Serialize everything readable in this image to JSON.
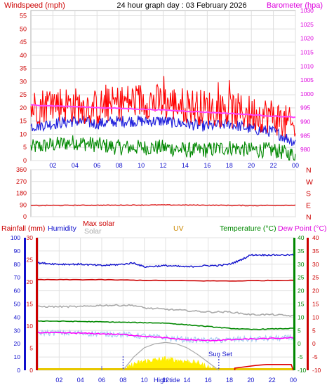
{
  "header": {
    "windspeed_label": "Windspeed (mph)",
    "title": "24 hour graph day : 03 February 2026",
    "barometer_label": "Barometer (hpa)"
  },
  "colors": {
    "wind_gust": "#ff0000",
    "wind_avg": "#2222dd",
    "wind_low": "#008800",
    "barometer": "#ff44ff",
    "direction": "#e03030",
    "humidity": "#1010cc",
    "rain": "#cc0000",
    "solar": "#aaaaaa",
    "max_solar": "#aaaaaa",
    "uv": "#cc8800",
    "temperature": "#008800",
    "dew_point": "#ff00ff",
    "sun_fill": "#ffee00"
  },
  "lower_labels": {
    "rainfall": "Rainfall (mm)",
    "humidity": "Humidity",
    "max_solar": "Max solar",
    "solar": "Solar",
    "uv": "UV",
    "temperature": "Temperature (°C)",
    "dew_point": "Dew Point (°C)",
    "high_tide": "High tide",
    "sun_set": "Sun Set"
  },
  "chart_data": [
    {
      "type": "line",
      "title": "24 hour graph day : 03 February 2026",
      "x_ticks": [
        "02",
        "04",
        "06",
        "08",
        "10",
        "12",
        "14",
        "16",
        "18",
        "20",
        "22",
        "00"
      ],
      "x_hours": [
        2,
        4,
        6,
        8,
        10,
        12,
        14,
        16,
        18,
        20,
        22,
        24
      ],
      "left_axis": {
        "label": "Windspeed (mph)",
        "ylim": [
          0,
          57
        ],
        "ticks": [
          0,
          5,
          10,
          15,
          20,
          25,
          30,
          35,
          40,
          45,
          50,
          55
        ]
      },
      "right_axis": {
        "label": "Barometer (hpa)",
        "ylim": [
          976,
          1030
        ],
        "ticks": [
          980,
          985,
          990,
          995,
          1000,
          1005,
          1010,
          1015,
          1020,
          1025,
          1030
        ]
      },
      "series": [
        {
          "name": "Wind gust",
          "axis": "left",
          "x": [
            0,
            2,
            4,
            6,
            8,
            10,
            12,
            14,
            16,
            18,
            20,
            22,
            24
          ],
          "y": [
            20,
            22,
            21,
            20,
            22,
            23,
            22,
            21,
            20,
            19,
            18,
            17,
            12
          ]
        },
        {
          "name": "Wind average",
          "axis": "left",
          "x": [
            0,
            2,
            4,
            6,
            8,
            10,
            12,
            14,
            16,
            18,
            20,
            22,
            24
          ],
          "y": [
            13,
            14,
            15,
            14,
            15,
            15,
            15,
            14,
            13,
            14,
            12,
            11,
            7
          ]
        },
        {
          "name": "Wind low",
          "axis": "left",
          "x": [
            0,
            2,
            4,
            6,
            8,
            10,
            12,
            14,
            16,
            18,
            20,
            22,
            24
          ],
          "y": [
            5,
            6,
            7,
            6,
            5,
            5,
            5,
            4,
            4,
            5,
            4,
            4,
            2
          ]
        },
        {
          "name": "Barometer",
          "axis": "right",
          "x": [
            0,
            2,
            4,
            6,
            8,
            10,
            12,
            14,
            16,
            18,
            20,
            22,
            24
          ],
          "y": [
            996,
            995.7,
            995.4,
            995.1,
            994.8,
            994.5,
            994.2,
            993.8,
            993.4,
            993.0,
            992.5,
            992.0,
            991.6
          ]
        }
      ]
    },
    {
      "type": "line",
      "title": "",
      "x_ticks": [],
      "left_axis": {
        "ylim": [
          0,
          360
        ],
        "ticks": [
          0,
          90,
          180,
          270,
          360
        ]
      },
      "right_labels": [
        "N",
        "W",
        "S",
        "E",
        "N"
      ],
      "series": [
        {
          "name": "Wind direction",
          "x": [
            0,
            4,
            8,
            12,
            16,
            20,
            24
          ],
          "y": [
            85,
            87,
            88,
            90,
            88,
            85,
            88
          ]
        }
      ]
    },
    {
      "type": "line",
      "title": "",
      "x_ticks": [
        "02",
        "04",
        "06",
        "08",
        "10",
        "12",
        "14",
        "16",
        "18",
        "20",
        "22",
        "00"
      ],
      "x_hours": [
        2,
        4,
        6,
        8,
        10,
        12,
        14,
        16,
        18,
        20,
        22,
        24
      ],
      "axes": {
        "humidity": {
          "label": "Humidity",
          "ylim": [
            0,
            100
          ],
          "ticks": [
            0,
            10,
            20,
            30,
            40,
            50,
            60,
            70,
            80,
            90,
            100
          ]
        },
        "rainfall": {
          "label": "Rainfall (mm)",
          "ylim": [
            0,
            30
          ],
          "ticks": [
            0,
            5,
            10,
            15,
            20,
            25,
            30
          ]
        },
        "temperature": {
          "label": "Temperature (°C)",
          "ylim": [
            -10,
            40
          ],
          "ticks": [
            -10,
            -5,
            0,
            5,
            10,
            15,
            20,
            25,
            30,
            35,
            40
          ]
        },
        "dew_point": {
          "label": "Dew Point (°C)",
          "ylim": [
            -10,
            40
          ],
          "ticks": [
            -10,
            -5,
            0,
            5,
            10,
            15,
            20,
            25,
            30,
            35,
            40
          ]
        }
      },
      "series": [
        {
          "name": "Humidity",
          "axis": "humidity",
          "x": [
            0,
            2,
            4,
            6,
            8,
            9,
            10,
            12,
            14,
            16,
            17,
            18,
            19,
            20,
            22,
            24
          ],
          "y": [
            81,
            80,
            80,
            79,
            80,
            81,
            78,
            79,
            78,
            79,
            79,
            80,
            83,
            87,
            87,
            87
          ]
        },
        {
          "name": "Rainfall",
          "axis": "rainfall",
          "x": [
            0,
            6,
            12,
            18,
            24
          ],
          "y": [
            20.5,
            20.5,
            20.3,
            20.2,
            20.4
          ]
        },
        {
          "name": "Solar (scaled)",
          "axis": "humidity",
          "x": [
            0,
            4,
            6,
            8,
            9,
            10,
            12,
            14,
            16,
            18,
            20,
            22,
            24
          ],
          "y": [
            48,
            48,
            49,
            49,
            49,
            47,
            46,
            45,
            44,
            44,
            42,
            42,
            41
          ]
        },
        {
          "name": "Temperature",
          "axis": "temperature",
          "x": [
            0,
            4,
            8,
            12,
            16,
            18,
            20,
            22,
            24
          ],
          "y": [
            8.6,
            8.4,
            8.1,
            7.8,
            6.5,
            5.8,
            5.4,
            5.6,
            5.8
          ]
        },
        {
          "name": "Dew Point",
          "axis": "dew_point",
          "x": [
            0,
            4,
            8,
            12,
            14,
            16,
            18,
            20,
            22,
            24
          ],
          "y": [
            4.2,
            4,
            3.5,
            2.2,
            1.5,
            1.2,
            1.5,
            1.8,
            2.0,
            2.2
          ]
        },
        {
          "name": "Max solar (curve)",
          "axis": "humidity",
          "x": [
            8,
            9,
            10,
            11,
            12,
            13,
            14,
            15,
            16,
            17
          ],
          "y": [
            0,
            10,
            17,
            20,
            21,
            20,
            17,
            12,
            6,
            0
          ]
        },
        {
          "name": "Solar radiation",
          "axis": "humidity",
          "x": [
            8,
            9,
            10,
            11,
            12,
            13,
            14,
            15,
            16,
            17
          ],
          "y": [
            0,
            5,
            7,
            8,
            9,
            8,
            7,
            6,
            3,
            0
          ]
        },
        {
          "name": "Rain rate",
          "axis": "rainfall",
          "x": [
            18.5,
            19.5,
            20.5,
            21.5,
            22.5,
            23.8
          ],
          "y": [
            0.5,
            0.8,
            1.1,
            1.3,
            1.3,
            1.3
          ]
        }
      ],
      "markers": [
        {
          "label": "High tide",
          "x": 12
        },
        {
          "label": "Sun Set",
          "x": 17
        }
      ]
    }
  ]
}
